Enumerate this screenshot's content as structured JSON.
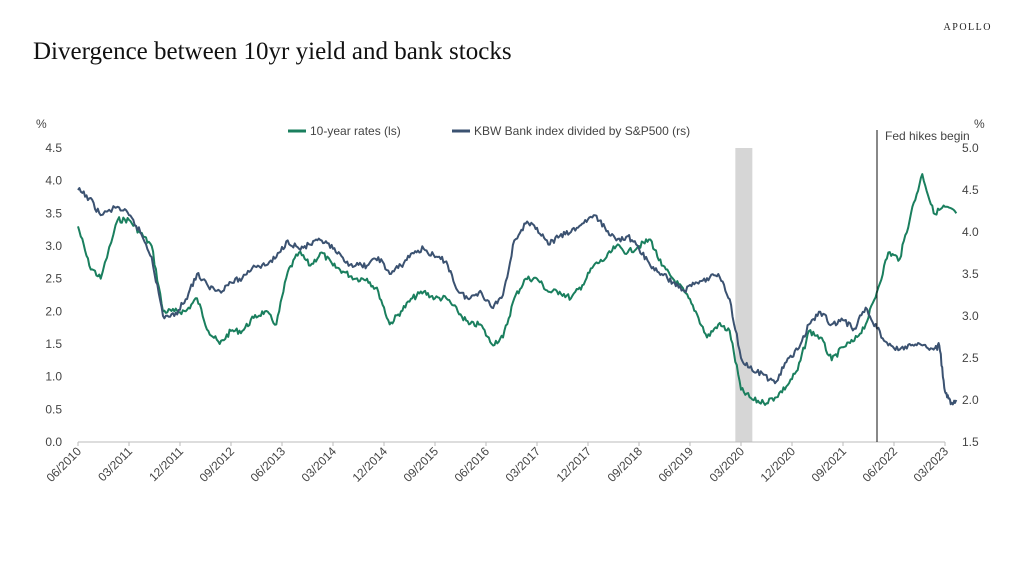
{
  "brand": "APOLLO",
  "title": "Divergence between 10yr yield and bank stocks",
  "colors": {
    "rates": "#1a7f5e",
    "kbw": "#3b5271",
    "recession": "#d6d6d6",
    "axis": "#bbbbbb",
    "annotation": "#111111"
  },
  "chart_data": {
    "type": "line",
    "left_unit": "%",
    "right_unit": "%",
    "left_ylim": [
      0.0,
      4.5
    ],
    "left_ticks": [
      "0.0",
      "0.5",
      "1.0",
      "1.5",
      "2.0",
      "2.5",
      "3.0",
      "3.5",
      "4.0",
      "4.5"
    ],
    "right_ylim": [
      1.5,
      5.0
    ],
    "right_ticks": [
      "1.5",
      "2.0",
      "2.5",
      "3.0",
      "3.5",
      "4.0",
      "4.5",
      "5.0"
    ],
    "x_ticks": [
      "06/2010",
      "03/2011",
      "12/2011",
      "09/2012",
      "06/2013",
      "03/2014",
      "12/2014",
      "09/2015",
      "06/2016",
      "03/2017",
      "12/2017",
      "09/2018",
      "06/2019",
      "03/2020",
      "12/2020",
      "09/2021",
      "06/2022",
      "03/2023"
    ],
    "legend": "top-center",
    "grid": false,
    "recession_shading": {
      "start": "2020-02",
      "end": "2020-05"
    },
    "annotation": {
      "label": "Fed hikes begin",
      "date": "2022-03"
    },
    "series": [
      {
        "name": "10-year rates (ls)",
        "axis": "left",
        "points": [
          [
            "2010-06",
            3.3
          ],
          [
            "2010-08",
            2.7
          ],
          [
            "2010-10",
            2.5
          ],
          [
            "2011-01",
            3.4
          ],
          [
            "2011-03",
            3.4
          ],
          [
            "2011-05",
            3.2
          ],
          [
            "2011-07",
            3.0
          ],
          [
            "2011-09",
            2.0
          ],
          [
            "2011-11",
            2.0
          ],
          [
            "2012-01",
            2.0
          ],
          [
            "2012-03",
            2.2
          ],
          [
            "2012-05",
            1.7
          ],
          [
            "2012-07",
            1.5
          ],
          [
            "2012-09",
            1.7
          ],
          [
            "2012-11",
            1.7
          ],
          [
            "2013-01",
            1.9
          ],
          [
            "2013-03",
            2.0
          ],
          [
            "2013-05",
            1.8
          ],
          [
            "2013-07",
            2.6
          ],
          [
            "2013-09",
            2.9
          ],
          [
            "2013-11",
            2.7
          ],
          [
            "2014-01",
            2.9
          ],
          [
            "2014-03",
            2.7
          ],
          [
            "2014-05",
            2.6
          ],
          [
            "2014-07",
            2.5
          ],
          [
            "2014-09",
            2.5
          ],
          [
            "2014-11",
            2.3
          ],
          [
            "2015-01",
            1.8
          ],
          [
            "2015-03",
            2.0
          ],
          [
            "2015-05",
            2.2
          ],
          [
            "2015-07",
            2.3
          ],
          [
            "2015-09",
            2.2
          ],
          [
            "2015-11",
            2.2
          ],
          [
            "2016-01",
            2.0
          ],
          [
            "2016-03",
            1.8
          ],
          [
            "2016-05",
            1.8
          ],
          [
            "2016-07",
            1.5
          ],
          [
            "2016-09",
            1.6
          ],
          [
            "2016-11",
            2.2
          ],
          [
            "2017-01",
            2.5
          ],
          [
            "2017-03",
            2.5
          ],
          [
            "2017-05",
            2.3
          ],
          [
            "2017-07",
            2.3
          ],
          [
            "2017-09",
            2.2
          ],
          [
            "2017-11",
            2.4
          ],
          [
            "2018-01",
            2.7
          ],
          [
            "2018-03",
            2.8
          ],
          [
            "2018-05",
            3.0
          ],
          [
            "2018-07",
            2.9
          ],
          [
            "2018-09",
            3.0
          ],
          [
            "2018-11",
            3.1
          ],
          [
            "2019-01",
            2.7
          ],
          [
            "2019-03",
            2.5
          ],
          [
            "2019-05",
            2.3
          ],
          [
            "2019-07",
            2.0
          ],
          [
            "2019-09",
            1.6
          ],
          [
            "2019-11",
            1.8
          ],
          [
            "2020-01",
            1.7
          ],
          [
            "2020-03",
            0.8
          ],
          [
            "2020-05",
            0.65
          ],
          [
            "2020-07",
            0.6
          ],
          [
            "2020-09",
            0.68
          ],
          [
            "2020-11",
            0.85
          ],
          [
            "2021-01",
            1.1
          ],
          [
            "2021-03",
            1.7
          ],
          [
            "2021-05",
            1.6
          ],
          [
            "2021-07",
            1.25
          ],
          [
            "2021-09",
            1.45
          ],
          [
            "2021-11",
            1.55
          ],
          [
            "2022-01",
            1.8
          ],
          [
            "2022-03",
            2.3
          ],
          [
            "2022-05",
            2.9
          ],
          [
            "2022-07",
            2.8
          ],
          [
            "2022-09",
            3.5
          ],
          [
            "2022-11",
            4.1
          ],
          [
            "2023-01",
            3.5
          ],
          [
            "2023-03",
            3.6
          ],
          [
            "2023-05",
            3.5
          ]
        ]
      },
      {
        "name": "KBW Bank index divided by S&P500 (rs)",
        "axis": "right",
        "points": [
          [
            "2010-06",
            4.5
          ],
          [
            "2010-08",
            4.4
          ],
          [
            "2010-10",
            4.2
          ],
          [
            "2011-01",
            4.3
          ],
          [
            "2011-03",
            4.2
          ],
          [
            "2011-05",
            4.0
          ],
          [
            "2011-07",
            3.7
          ],
          [
            "2011-09",
            3.0
          ],
          [
            "2011-11",
            3.0
          ],
          [
            "2012-01",
            3.2
          ],
          [
            "2012-03",
            3.5
          ],
          [
            "2012-05",
            3.35
          ],
          [
            "2012-07",
            3.3
          ],
          [
            "2012-09",
            3.4
          ],
          [
            "2012-11",
            3.45
          ],
          [
            "2013-01",
            3.6
          ],
          [
            "2013-03",
            3.6
          ],
          [
            "2013-05",
            3.7
          ],
          [
            "2013-07",
            3.9
          ],
          [
            "2013-09",
            3.8
          ],
          [
            "2013-11",
            3.85
          ],
          [
            "2014-01",
            3.9
          ],
          [
            "2014-03",
            3.8
          ],
          [
            "2014-05",
            3.65
          ],
          [
            "2014-07",
            3.6
          ],
          [
            "2014-09",
            3.6
          ],
          [
            "2014-11",
            3.7
          ],
          [
            "2015-01",
            3.5
          ],
          [
            "2015-03",
            3.6
          ],
          [
            "2015-05",
            3.75
          ],
          [
            "2015-07",
            3.8
          ],
          [
            "2015-09",
            3.7
          ],
          [
            "2015-11",
            3.65
          ],
          [
            "2016-01",
            3.3
          ],
          [
            "2016-03",
            3.2
          ],
          [
            "2016-05",
            3.3
          ],
          [
            "2016-07",
            3.1
          ],
          [
            "2016-09",
            3.25
          ],
          [
            "2016-11",
            3.9
          ],
          [
            "2017-01",
            4.1
          ],
          [
            "2017-03",
            4.05
          ],
          [
            "2017-05",
            3.85
          ],
          [
            "2017-07",
            3.95
          ],
          [
            "2017-09",
            4.0
          ],
          [
            "2017-11",
            4.1
          ],
          [
            "2018-01",
            4.2
          ],
          [
            "2018-03",
            4.05
          ],
          [
            "2018-05",
            3.9
          ],
          [
            "2018-07",
            3.95
          ],
          [
            "2018-09",
            3.8
          ],
          [
            "2018-11",
            3.6
          ],
          [
            "2019-01",
            3.5
          ],
          [
            "2019-03",
            3.4
          ],
          [
            "2019-05",
            3.3
          ],
          [
            "2019-07",
            3.4
          ],
          [
            "2019-09",
            3.45
          ],
          [
            "2019-11",
            3.5
          ],
          [
            "2020-01",
            3.2
          ],
          [
            "2020-03",
            2.5
          ],
          [
            "2020-05",
            2.35
          ],
          [
            "2020-07",
            2.3
          ],
          [
            "2020-09",
            2.2
          ],
          [
            "2020-11",
            2.45
          ],
          [
            "2021-01",
            2.6
          ],
          [
            "2021-03",
            2.9
          ],
          [
            "2021-05",
            3.05
          ],
          [
            "2021-07",
            2.9
          ],
          [
            "2021-09",
            2.95
          ],
          [
            "2021-11",
            2.85
          ],
          [
            "2022-01",
            3.1
          ],
          [
            "2022-03",
            2.85
          ],
          [
            "2022-05",
            2.65
          ],
          [
            "2022-07",
            2.6
          ],
          [
            "2022-09",
            2.65
          ],
          [
            "2022-11",
            2.65
          ],
          [
            "2023-01",
            2.6
          ],
          [
            "2023-02",
            2.65
          ],
          [
            "2023-03",
            2.1
          ],
          [
            "2023-04",
            1.95
          ],
          [
            "2023-05",
            2.0
          ]
        ]
      }
    ]
  }
}
